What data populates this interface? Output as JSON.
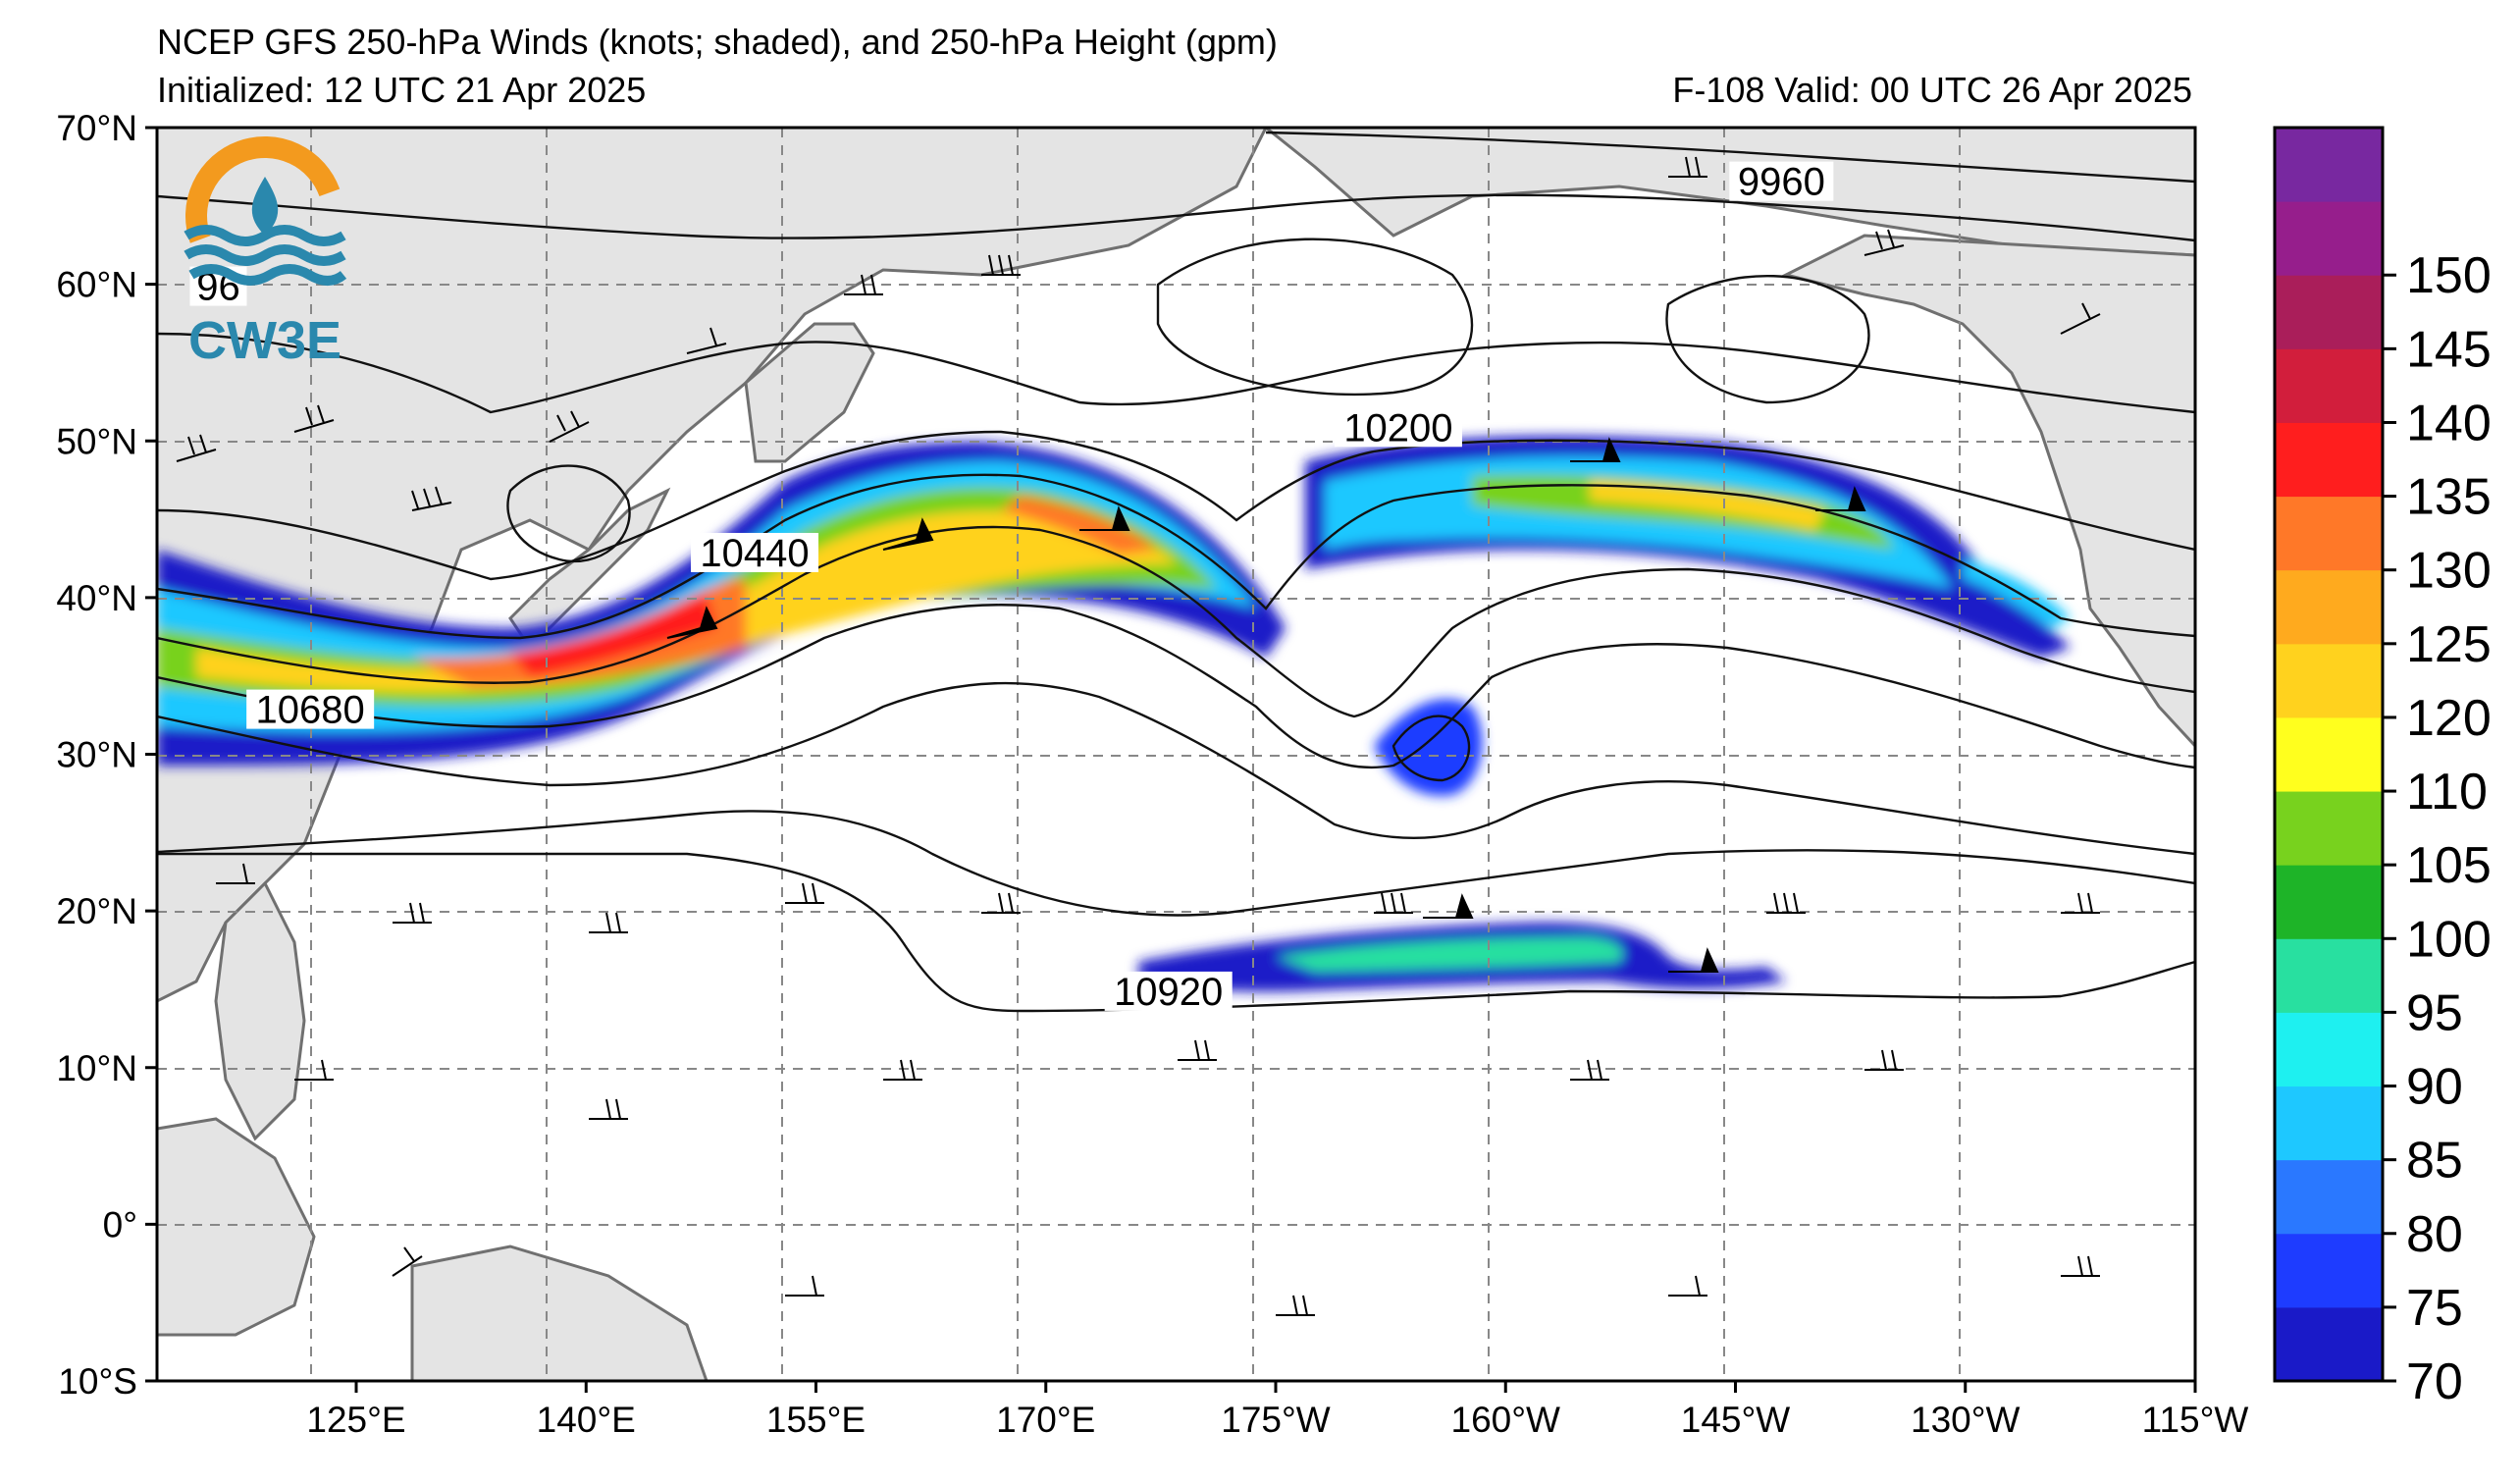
{
  "header": {
    "title": "NCEP GFS 250-hPa Winds (knots; shaded), and 250-hPa Height (gpm)",
    "initialized": "Initialized: 12 UTC 21 Apr 2025",
    "valid": "F-108  Valid: 00 UTC 26 Apr 2025"
  },
  "logo": {
    "text": "CW3E",
    "colors": {
      "ring": "#f39a1e",
      "waves": "#2a88ad",
      "drop": "#2a88ad"
    }
  },
  "map": {
    "projection": "equirectangular",
    "lon_range": [
      112,
      245
    ],
    "lat_range": [
      -10,
      70
    ],
    "x_ticks": [
      {
        "lon": 125,
        "label": "125°E"
      },
      {
        "lon": 140,
        "label": "140°E"
      },
      {
        "lon": 155,
        "label": "155°E"
      },
      {
        "lon": 170,
        "label": "170°E"
      },
      {
        "lon": 185,
        "label": "175°W"
      },
      {
        "lon": 200,
        "label": "160°W"
      },
      {
        "lon": 215,
        "label": "145°W"
      },
      {
        "lon": 230,
        "label": "130°W"
      },
      {
        "lon": 245,
        "label": "115°W"
      }
    ],
    "y_ticks": [
      {
        "lat": 70,
        "label": "70°N"
      },
      {
        "lat": 60,
        "label": "60°N"
      },
      {
        "lat": 50,
        "label": "50°N"
      },
      {
        "lat": 40,
        "label": "40°N"
      },
      {
        "lat": 30,
        "label": "30°N"
      },
      {
        "lat": 20,
        "label": "20°N"
      },
      {
        "lat": 10,
        "label": "10°N"
      },
      {
        "lat": 0,
        "label": "0°"
      },
      {
        "lat": -10,
        "label": "10°S"
      }
    ],
    "grid": true,
    "land_color": "#e4e4e4",
    "coast_color": "#707070"
  },
  "height_contour_labels": [
    {
      "text": "9960",
      "lon": 218,
      "lat": 66.2
    },
    {
      "text": "10200",
      "lon": 193,
      "lat": 50.5
    },
    {
      "text": "10440",
      "lon": 151,
      "lat": 42.5
    },
    {
      "text": "10680",
      "lon": 122,
      "lat": 32.5
    },
    {
      "text": "10920",
      "lon": 178,
      "lat": 14.5
    },
    {
      "text": "96",
      "lon": 116,
      "lat": 59.5
    }
  ],
  "colorbar": {
    "levels": [
      70,
      75,
      80,
      85,
      90,
      95,
      100,
      105,
      110,
      120,
      125,
      130,
      135,
      140,
      145,
      150
    ],
    "labels": [
      "70",
      "75",
      "80",
      "85",
      "90",
      "95",
      "100",
      "105",
      "110",
      "120",
      "125",
      "130",
      "135",
      "140",
      "145",
      "150"
    ],
    "colors": [
      "#1a1ac8",
      "#1e3cff",
      "#2a78ff",
      "#1ec8ff",
      "#1ef0f0",
      "#28e0a0",
      "#1eb428",
      "#78d21e",
      "#ffff1e",
      "#ffd21e",
      "#ffaa1e",
      "#ff7828",
      "#ff1e1e",
      "#d21e3c",
      "#aa1e5a",
      "#961e8c",
      "#7828a0"
    ],
    "unit": "knots"
  }
}
